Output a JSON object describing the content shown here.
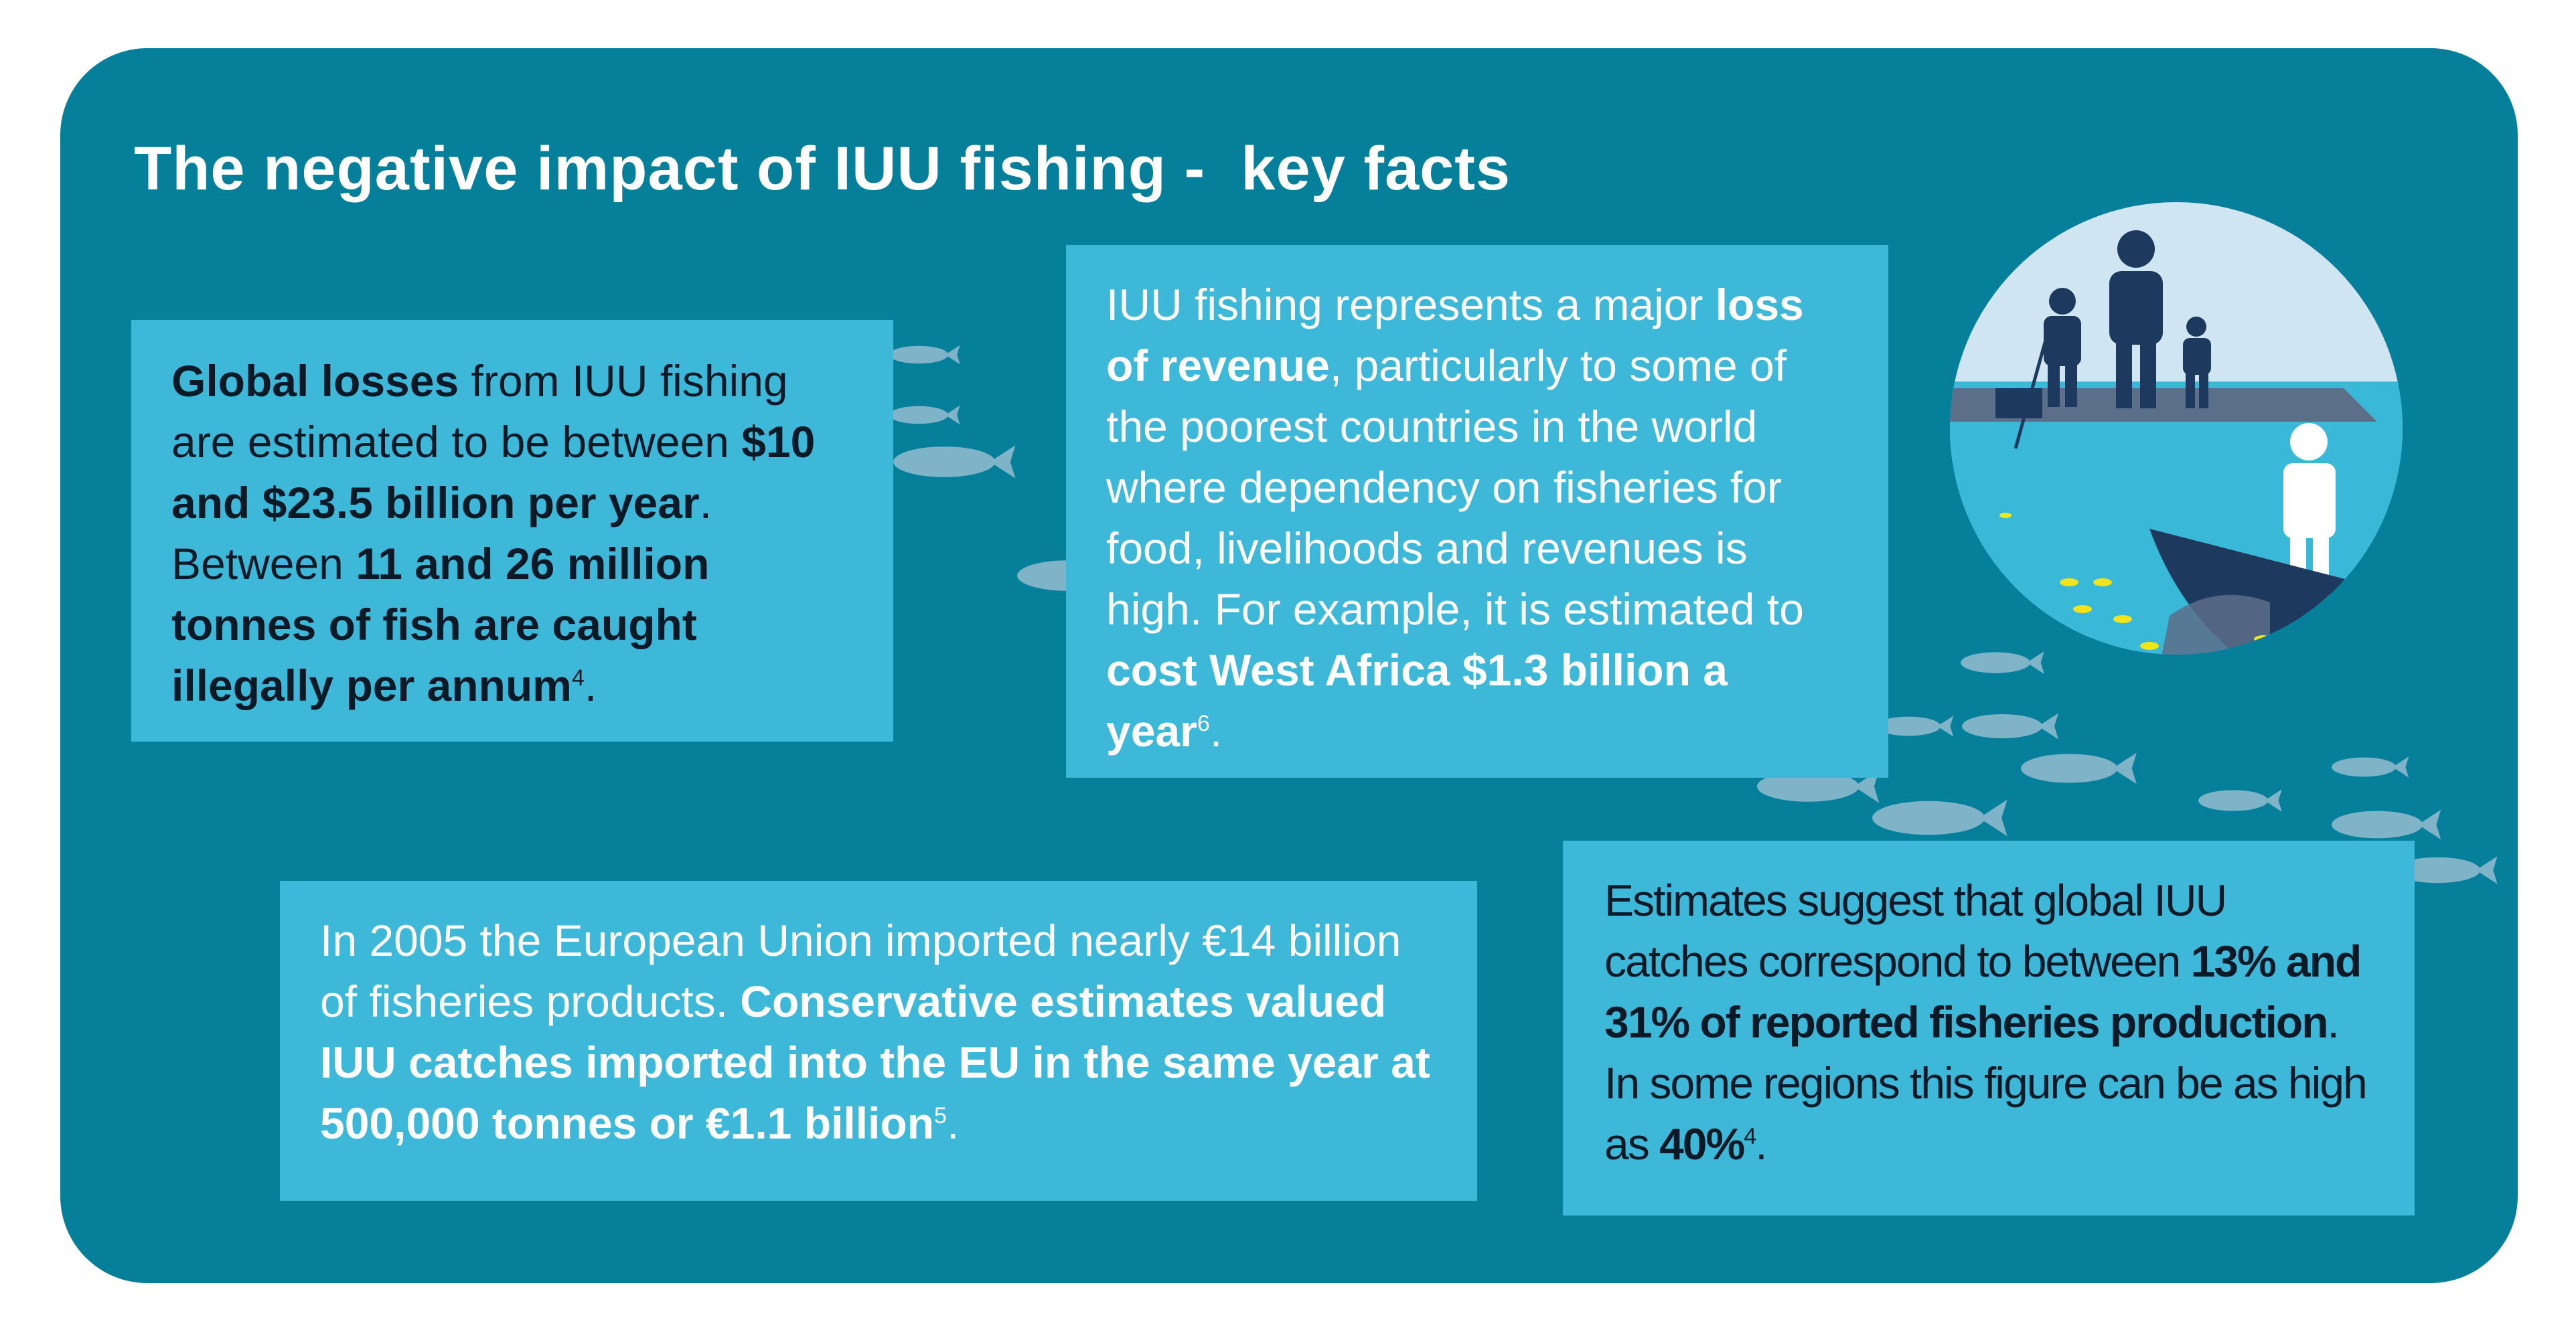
{
  "title": "The negative impact of IUU fishing -  key facts",
  "colors": {
    "background": "#057f9a",
    "box": "#3db8d9",
    "dark_text": "#0b1a26",
    "light_text": "#ffffff",
    "fish": "#7fb4c8"
  },
  "facts": {
    "global_losses": {
      "p1": "Global losses",
      "p2": " from IUU fishing are estimated to be between ",
      "p3": "$10 and $23.5 billion per year",
      "p4": ". Between ",
      "p5": "11 and 26 million tonnes of fish are caught illegally per annum",
      "sup": "4",
      "p6": "."
    },
    "revenue": {
      "p1": "IUU fishing represents a major ",
      "p2": "loss of revenue",
      "p3": ", particularly to some of the poorest countries in the world where dependency on fisheries for food, livelihoods and revenues is high. For example, it is estimated to ",
      "p4": "cost West Africa $1.3 billion a year",
      "sup": "6",
      "p5": "."
    },
    "eu_imports": {
      "p1": "In 2005 the European Union imported nearly €14 billion of fisheries products. ",
      "p2": "Conservative estimates valued IUU catches imported into the EU in the same year at 500,000 tonnes or €1.1 billion",
      "sup": "5",
      "p3": "."
    },
    "global_catches": {
      "p1": "Estimates suggest that global IUU catches correspond to between ",
      "p2": "13% and 31% of reported fisheries production",
      "p3": ". In some regions this figure can be as high as ",
      "p4": "40%",
      "sup": "4",
      "p5": "."
    }
  },
  "illustration": {
    "icon": "family-fishing-boat-illustration"
  },
  "decoration": {
    "icon": "fish-school-decoration"
  }
}
